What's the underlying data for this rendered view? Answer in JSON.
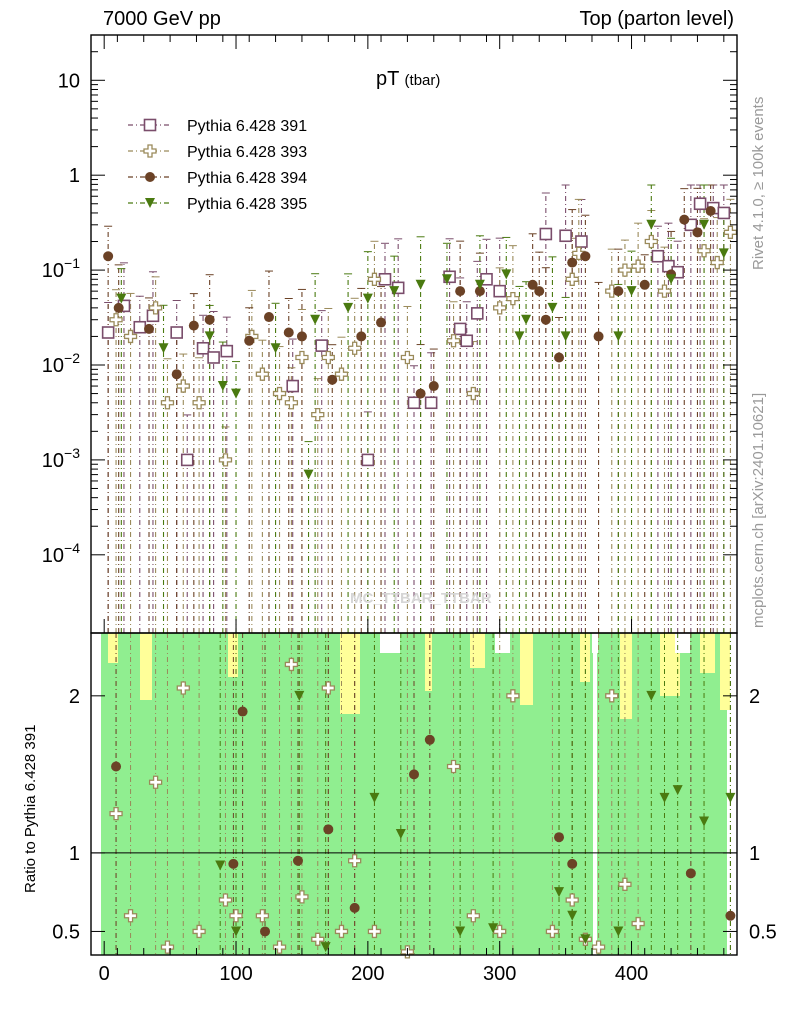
{
  "header": {
    "left": "7000 GeV pp",
    "right": "Top (parton level)",
    "title_main": "pT",
    "title_sub": "(tbar)"
  },
  "side": {
    "rivet": "Rivet 4.1.0, ≥ 100k events",
    "mcplots": "mcplots.cern.ch [arXiv:2401.10621]"
  },
  "watermark": "MC_TTBAR_TTBAR",
  "ratio_ylabel": "Ratio to Pythia 6.428 391",
  "colors": {
    "s391": "#7a4d6b",
    "s393": "#9a8a5a",
    "s394": "#6b4226",
    "s395": "#4a7a10",
    "band_green": "#90ee90",
    "band_yellow": "#ffff99"
  },
  "chart_data": {
    "type": "scatter",
    "upper": {
      "yscale": "log",
      "ylim": [
        1.5e-05,
        30
      ],
      "yticks": [
        {
          "v": 10,
          "label": "10"
        },
        {
          "v": 1,
          "label": "1"
        },
        {
          "v": 0.1,
          "label": "10^-1"
        },
        {
          "v": 0.01,
          "label": "10^-2"
        },
        {
          "v": 0.001,
          "label": "10^-3"
        },
        {
          "v": 0.0001,
          "label": "10^-4"
        }
      ]
    },
    "lower": {
      "ylim": [
        0.35,
        2.4
      ],
      "yticks": [
        {
          "v": 0.5,
          "label": "0.5"
        },
        {
          "v": 1,
          "label": "1"
        },
        {
          "v": 2,
          "label": "2"
        }
      ],
      "reference": 1
    },
    "xlim": [
      -10,
      480
    ],
    "xticks": [
      {
        "v": 0,
        "label": "0"
      },
      {
        "v": 100,
        "label": "100"
      },
      {
        "v": 200,
        "label": "200"
      },
      {
        "v": 300,
        "label": "300"
      },
      {
        "v": 400,
        "label": "400"
      }
    ],
    "series": [
      {
        "name": "Pythia 6.428 391",
        "marker": "open-square",
        "x": [
          3,
          15,
          27,
          37,
          55,
          63,
          75,
          83,
          93,
          143,
          165,
          200,
          213,
          223,
          235,
          248,
          262,
          270,
          275,
          283,
          290,
          300,
          335,
          350,
          362,
          420,
          428,
          435,
          445,
          452,
          462,
          470
        ],
        "y": [
          0.022,
          0.042,
          0.025,
          0.033,
          0.022,
          0.001,
          0.015,
          0.012,
          0.014,
          0.006,
          0.016,
          0.001,
          0.08,
          0.065,
          0.004,
          0.004,
          0.085,
          0.024,
          0.018,
          0.035,
          0.08,
          0.06,
          0.24,
          0.23,
          0.2,
          0.14,
          0.11,
          0.095,
          0.3,
          0.5,
          0.45,
          0.4
        ]
      },
      {
        "name": "Pythia 6.428 393",
        "marker": "open-cross",
        "x": [
          9,
          20,
          39,
          48,
          60,
          72,
          92,
          112,
          120,
          133,
          142,
          150,
          162,
          170,
          180,
          190,
          205,
          230,
          265,
          280,
          300,
          310,
          355,
          360,
          385,
          395,
          405,
          415,
          425,
          455,
          465,
          475
        ],
        "y": [
          0.03,
          0.02,
          0.04,
          0.004,
          0.006,
          0.004,
          0.001,
          0.02,
          0.008,
          0.005,
          0.004,
          0.012,
          0.003,
          0.012,
          0.008,
          0.015,
          0.08,
          0.012,
          0.018,
          0.005,
          0.04,
          0.05,
          0.08,
          0.15,
          0.06,
          0.1,
          0.11,
          0.2,
          0.06,
          0.16,
          0.12,
          0.25
        ]
      },
      {
        "name": "Pythia 6.428 394",
        "marker": "filled-circle",
        "x": [
          3,
          11,
          34,
          55,
          68,
          80,
          110,
          125,
          140,
          150,
          173,
          195,
          210,
          240,
          250,
          270,
          285,
          325,
          330,
          335,
          345,
          355,
          365,
          375,
          390,
          410,
          430,
          440,
          450,
          460
        ],
        "y": [
          0.14,
          0.04,
          0.024,
          0.008,
          0.026,
          0.03,
          0.018,
          0.032,
          0.022,
          0.02,
          0.007,
          0.02,
          0.028,
          0.005,
          0.006,
          0.06,
          0.06,
          0.07,
          0.06,
          0.03,
          0.012,
          0.12,
          0.14,
          0.02,
          0.06,
          0.07,
          0.09,
          0.34,
          0.25,
          0.42
        ]
      },
      {
        "name": "Pythia 6.428 395",
        "marker": "filled-triangle-down",
        "x": [
          13,
          45,
          80,
          90,
          100,
          130,
          155,
          160,
          185,
          200,
          220,
          240,
          260,
          285,
          305,
          315,
          320,
          340,
          350,
          390,
          400,
          415,
          430,
          455,
          470
        ],
        "y": [
          0.05,
          0.015,
          0.02,
          0.006,
          0.005,
          0.015,
          0.0007,
          0.03,
          0.04,
          0.05,
          0.06,
          0.07,
          0.08,
          0.07,
          0.09,
          0.02,
          0.03,
          0.04,
          0.02,
          0.02,
          0.06,
          0.3,
          0.08,
          0.3,
          0.15
        ]
      }
    ],
    "ratio_series": [
      {
        "name": "Pythia 6.428 393",
        "x": [
          9,
          20,
          39,
          48,
          60,
          72,
          92,
          100,
          120,
          133,
          142,
          150,
          162,
          170,
          180,
          190,
          205,
          230,
          265,
          280,
          300,
          310,
          340,
          355,
          365,
          375,
          385,
          395,
          405
        ],
        "y": [
          1.25,
          0.6,
          1.45,
          0.4,
          2.05,
          0.5,
          0.7,
          0.6,
          0.6,
          0.4,
          2.2,
          0.72,
          0.45,
          2.05,
          0.5,
          0.95,
          0.5,
          0.37,
          1.55,
          0.6,
          0.5,
          2.0,
          0.5,
          0.7,
          0.45,
          0.4,
          2.0,
          0.8,
          0.55
        ]
      },
      {
        "name": "Pythia 6.428 394",
        "x": [
          9,
          98,
          105,
          122,
          147,
          170,
          190,
          235,
          247,
          345,
          355,
          445,
          475
        ],
        "y": [
          1.55,
          0.93,
          1.9,
          0.5,
          0.95,
          1.15,
          0.65,
          1.5,
          1.72,
          1.1,
          0.93,
          0.87,
          0.6
        ]
      },
      {
        "name": "Pythia 6.428 395",
        "x": [
          88,
          100,
          148,
          168,
          205,
          225,
          270,
          295,
          345,
          355,
          365,
          390,
          415,
          425,
          435,
          455,
          475
        ],
        "y": [
          0.92,
          0.5,
          2.0,
          0.4,
          1.35,
          1.12,
          0.5,
          0.52,
          0.75,
          0.6,
          0.45,
          0.5,
          2.0,
          1.35,
          1.4,
          1.2,
          1.35
        ]
      }
    ]
  }
}
